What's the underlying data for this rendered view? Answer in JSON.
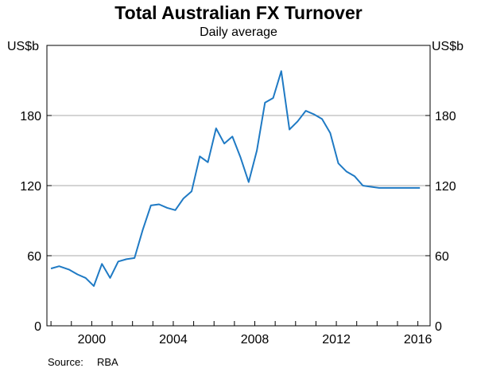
{
  "chart_data": {
    "type": "line",
    "title": "Total Australian FX Turnover",
    "subtitle": "Daily average",
    "ylabel_left": "US$b",
    "ylabel_right": "US$b",
    "ylim": [
      0,
      240
    ],
    "yticks": [
      0,
      60,
      120,
      180
    ],
    "xlim": [
      1997.8,
      2016.6
    ],
    "xticks": [
      2000,
      2004,
      2008,
      2012,
      2016
    ],
    "grid": "horizontal",
    "line_color": "#1f7ac4",
    "source_label": "Source:",
    "source_value": "RBA",
    "series": [
      {
        "x": [
          1998.0,
          1998.4,
          1998.9,
          1999.3,
          1999.7,
          2000.1,
          2000.5,
          2000.9,
          2001.3,
          2001.7,
          2002.1,
          2002.5,
          2002.9,
          2003.3,
          2003.7,
          2004.1,
          2004.5,
          2004.9,
          2005.3,
          2005.7,
          2006.1,
          2006.5,
          2006.9,
          2007.3,
          2007.7,
          2008.1,
          2008.5,
          2008.9,
          2009.3,
          2009.7,
          2010.1,
          2010.5,
          2010.9,
          2011.3,
          2011.7,
          2012.1,
          2012.5,
          2012.9,
          2013.3,
          2013.7,
          2014.1,
          2014.5,
          2014.9,
          2015.3,
          2015.7,
          2016.1
        ],
        "y": [
          49,
          51,
          48,
          44,
          41,
          34,
          53,
          41,
          55,
          57,
          58,
          82,
          103,
          104,
          101,
          99,
          109,
          115,
          145,
          140,
          169,
          156,
          162,
          144,
          123,
          150,
          191,
          195,
          218,
          168,
          175,
          184,
          181,
          177,
          165,
          139,
          132,
          128,
          120,
          119,
          118,
          118,
          118,
          118,
          118,
          118
        ]
      }
    ]
  }
}
